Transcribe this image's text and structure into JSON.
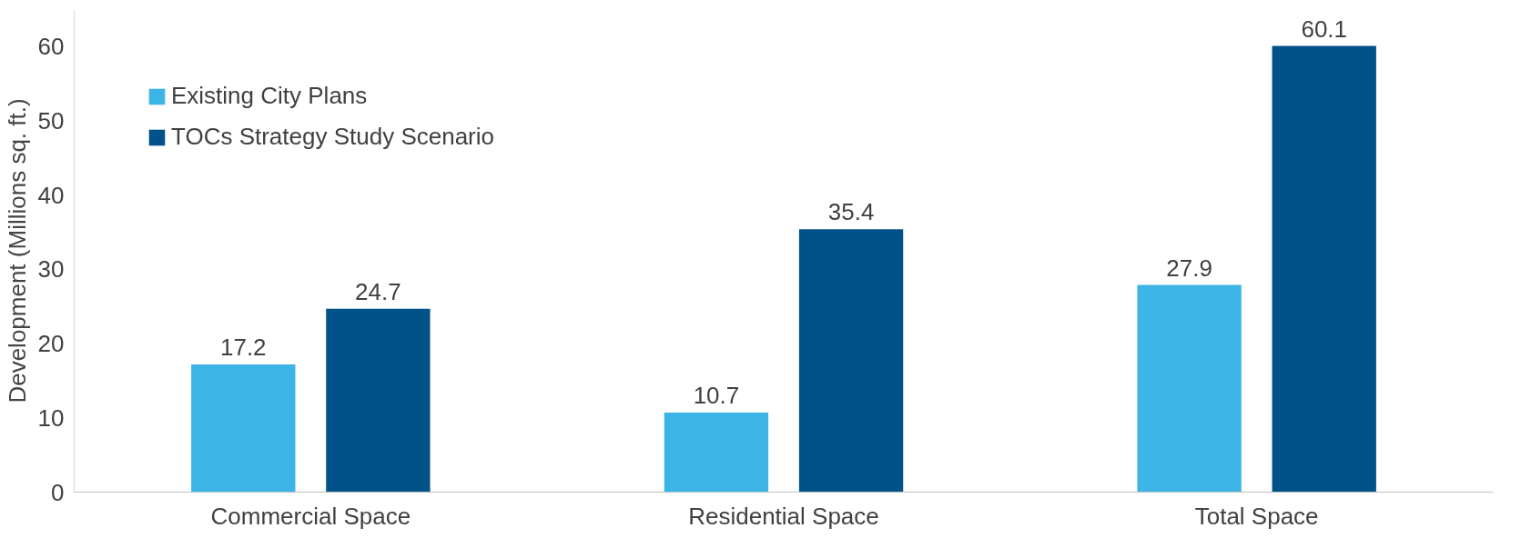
{
  "chart_data": {
    "type": "bar",
    "ylabel": "Development (Millions sq. ft.)",
    "categories": [
      "Commercial Space",
      "Residential Space",
      "Total Space"
    ],
    "series": [
      {
        "name": "Existing City Plans",
        "color": "#3cb4e5",
        "values": [
          17.2,
          10.7,
          27.9
        ]
      },
      {
        "name": "TOCs Strategy Study Scenario",
        "color": "#005288",
        "values": [
          24.7,
          35.4,
          60.1
        ]
      }
    ],
    "ylim": [
      0,
      65
    ],
    "yticks": [
      0,
      10,
      20,
      30,
      40,
      50,
      60
    ],
    "data_labels": true,
    "legend": "top left",
    "grid": false
  }
}
